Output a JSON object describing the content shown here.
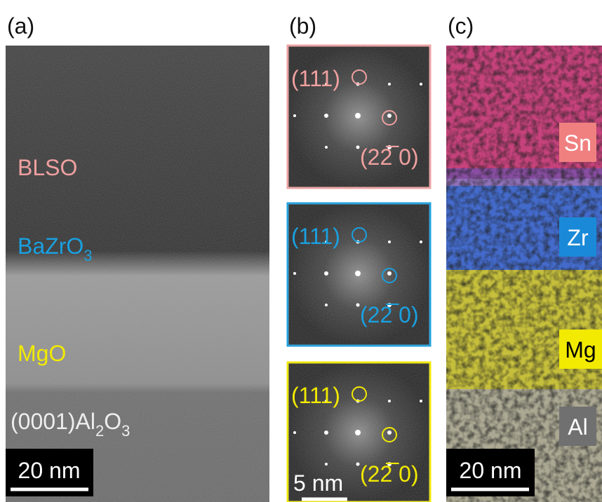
{
  "panels": [
    {
      "label": "(a)",
      "layers": [
        {
          "text": "BLSO"
        },
        {
          "text": "BaZrO",
          "sub": "3"
        },
        {
          "text": "MgO"
        }
      ],
      "substrate": {
        "prefix": "(0001)Al",
        "sub1": "2",
        "mid": "O",
        "sub2": "3"
      },
      "scale_bar": "20 nm"
    },
    {
      "label": "(b)",
      "ffts": [
        {
          "plane1": "(111)",
          "plane2": "(22̅ 0)"
        },
        {
          "plane1": "(111)",
          "plane2": "(22̅ 0)"
        },
        {
          "plane1": "(111)",
          "plane2": "(22̅ 0)"
        }
      ],
      "scale_bar": "5 nm"
    },
    {
      "label": "(c)",
      "elements": [
        "Sn",
        "Zr",
        "Mg",
        "Al"
      ],
      "scale_bar": "20 nm"
    }
  ]
}
